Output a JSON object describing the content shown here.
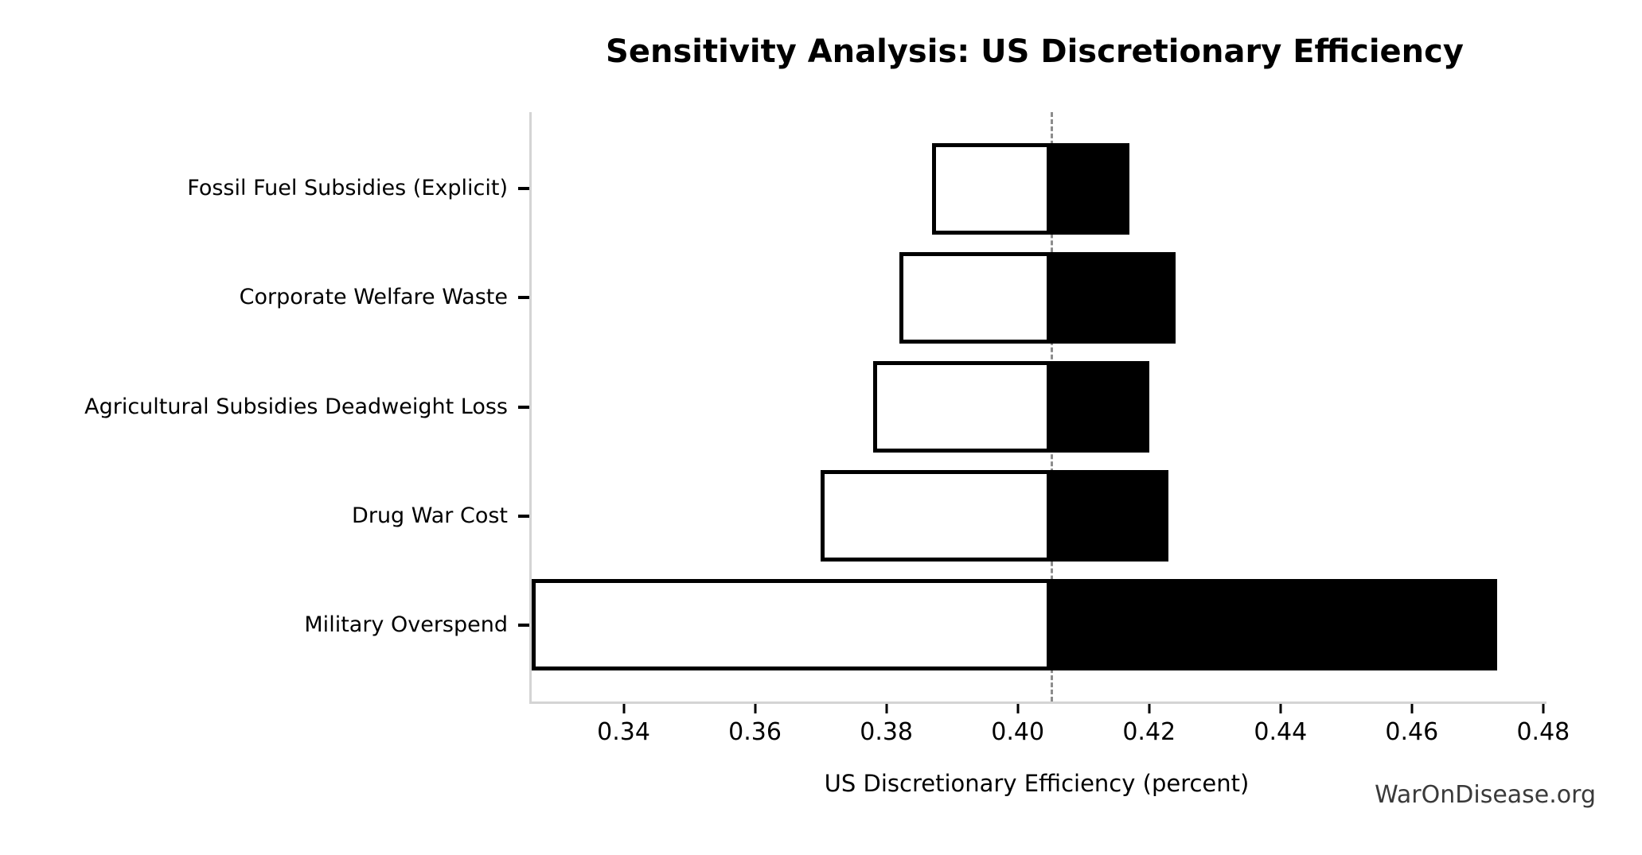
{
  "title": "Sensitivity Analysis: US Discretionary Efficiency",
  "watermark": "WarOnDisease.org",
  "colors": {
    "bar_low_fill": "#ffffff",
    "bar_high_fill": "#000000",
    "bar_edge": "#000000",
    "baseline_dash": "#8c8c8c",
    "axis_spine": "#d4d4d4",
    "tick_mark": "#000000",
    "watermark_text": "#3a3a3a",
    "background": "#ffffff"
  },
  "chart_data": {
    "type": "bar",
    "subtype": "tornado-horizontal",
    "title": "Sensitivity Analysis: US Discretionary Efficiency",
    "xlabel": "US Discretionary Efficiency (percent)",
    "ylabel": "",
    "grid": false,
    "legend": "none",
    "baseline": 0.405,
    "xlim": [
      0.326,
      0.4805
    ],
    "xticks": [
      0.34,
      0.36,
      0.38,
      0.4,
      0.42,
      0.44,
      0.46,
      0.48
    ],
    "xtick_labels": [
      "0.34",
      "0.36",
      "0.38",
      "0.40",
      "0.42",
      "0.44",
      "0.46",
      "0.48"
    ],
    "categories": [
      "Fossil Fuel Subsidies (Explicit)",
      "Corporate Welfare Waste",
      "Agricultural Subsidies Deadweight Loss",
      "Drug War Cost",
      "Military Overspend"
    ],
    "items": [
      {
        "label": "Fossil Fuel Subsidies (Explicit)",
        "low": 0.387,
        "high": 0.417
      },
      {
        "label": "Corporate Welfare Waste",
        "low": 0.382,
        "high": 0.424
      },
      {
        "label": "Agricultural Subsidies Deadweight Loss",
        "low": 0.378,
        "high": 0.42
      },
      {
        "label": "Drug War Cost",
        "low": 0.37,
        "high": 0.423
      },
      {
        "label": "Military Overspend",
        "low": 0.326,
        "high": 0.473
      }
    ],
    "series": [
      {
        "name": "low",
        "values": [
          0.387,
          0.382,
          0.378,
          0.37,
          0.326
        ]
      },
      {
        "name": "high",
        "values": [
          0.417,
          0.424,
          0.42,
          0.423,
          0.473
        ]
      }
    ]
  }
}
